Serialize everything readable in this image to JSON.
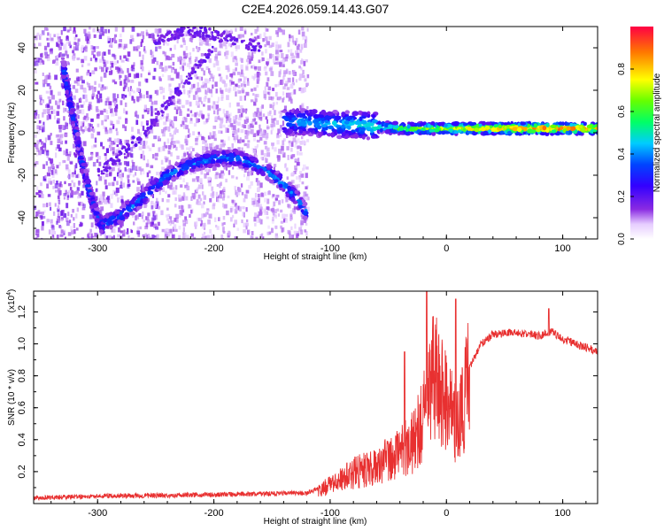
{
  "figure_title": "C2E4.2026.059.14.43.G07",
  "chart_data": [
    {
      "type": "heatmap",
      "title": "C2E4.2026.059.14.43.G07",
      "xlabel": "Height of straight line (km)",
      "ylabel": "Frequency (Hz)",
      "xlim": [
        -355,
        130
      ],
      "ylim": [
        -50,
        50
      ],
      "xticks": [
        -300,
        -200,
        -100,
        0,
        100
      ],
      "yticks": [
        -40,
        -20,
        0,
        20,
        40
      ],
      "xtick_labels": [
        "-300",
        "-200",
        "-100",
        "0",
        "100"
      ],
      "ytick_labels": [
        "-40",
        "-20",
        "0",
        "20",
        "40"
      ],
      "colorbar": {
        "label": "Normalized spectral amplitude",
        "range": [
          0,
          1
        ],
        "ticks": [
          0.0,
          0.2,
          0.4,
          0.6,
          0.8
        ],
        "tick_labels": [
          "0.0",
          "0.2",
          "0.4",
          "0.6",
          "0.8"
        ],
        "colormap": [
          "#ffffff",
          "#ff00ff",
          "#5500ff",
          "#0000ff",
          "#00ffff",
          "#00ff00",
          "#ffff00",
          "#ff8800",
          "#ff0000"
        ]
      },
      "ridges": [
        {
          "name": "descending branch",
          "x": [
            -330,
            -322,
            -315,
            -308,
            -300,
            -295
          ],
          "y": [
            32,
            10,
            -10,
            -26,
            -40,
            -45
          ],
          "amplitude": 0.35
        },
        {
          "name": "arc",
          "x": [
            -295,
            -280,
            -260,
            -240,
            -220,
            -200,
            -180,
            -160,
            -145,
            -130,
            -120
          ],
          "y": [
            -43,
            -39,
            -30,
            -20,
            -15,
            -12,
            -12,
            -16,
            -22,
            -30,
            -38
          ],
          "amplitude": 0.4
        },
        {
          "name": "central line",
          "x": [
            -140,
            -120,
            -100,
            -80,
            -60,
            -40,
            -20,
            0,
            20,
            40,
            60,
            80,
            100,
            130
          ],
          "y": [
            5,
            5,
            4,
            4,
            3,
            2,
            2,
            2,
            2,
            2,
            2,
            2,
            2,
            2
          ],
          "amplitude": [
            0.4,
            0.45,
            0.45,
            0.5,
            0.55,
            0.6,
            0.7,
            0.75,
            0.8,
            0.85,
            0.9,
            0.95,
            0.9,
            0.85
          ]
        }
      ]
    },
    {
      "type": "line",
      "xlabel": "Height of straight line (km)",
      "ylabel": "SNR (10 * v/v)",
      "y_multiplier": "(x10^4)",
      "y_multiplier_base": "(x10",
      "y_multiplier_exp": "4",
      "y_multiplier_close": ")",
      "xlim": [
        -355,
        130
      ],
      "ylim": [
        0,
        1.33
      ],
      "xticks": [
        -300,
        -200,
        -100,
        0,
        100
      ],
      "yticks": [
        0.2,
        0.4,
        0.6,
        0.8,
        1.0,
        1.2
      ],
      "xtick_labels": [
        "-300",
        "-200",
        "-100",
        "0",
        "100"
      ],
      "ytick_labels": [
        "0.2",
        "0.4",
        "0.6",
        "0.8",
        "1.0",
        "1.2"
      ],
      "series": [
        {
          "name": "SNR",
          "color": "#e83030",
          "envelope_x": [
            -355,
            -300,
            -200,
            -120,
            -100,
            -80,
            -60,
            -40,
            -30,
            -20,
            -15,
            -10,
            0,
            10,
            20,
            30,
            40,
            60,
            80,
            90,
            100,
            130
          ],
          "envelope_y": [
            0.03,
            0.04,
            0.05,
            0.06,
            0.12,
            0.2,
            0.25,
            0.35,
            0.4,
            0.55,
            0.8,
            0.85,
            0.65,
            0.5,
            0.85,
            1.0,
            1.06,
            1.07,
            1.05,
            1.08,
            1.03,
            0.95
          ],
          "spikes": [
            {
              "x": -17,
              "y": 1.33
            },
            {
              "x": 8,
              "y": 1.28
            },
            {
              "x": 88,
              "y": 1.22
            },
            {
              "x": 10,
              "y": 0.3
            },
            {
              "x": -36,
              "y": 0.95
            }
          ]
        }
      ]
    }
  ]
}
